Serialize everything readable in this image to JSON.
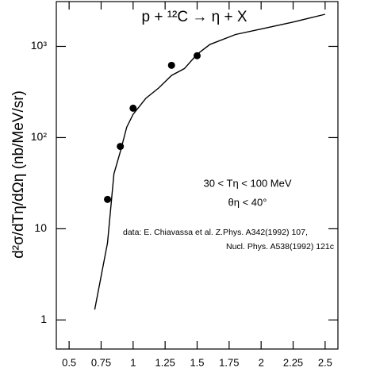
{
  "chart_data": {
    "type": "line",
    "title": "p + ¹²C → η + X",
    "y_label": "d²σ/dTη/dΩη (nb/MeV/sr)",
    "annotations": [
      "30 < Tη < 100 MeV",
      "θη < 40°",
      "data: E. Chiavassa et al. Z.Phys. A342(1992) 107,",
      "Nucl. Phys. A538(1992) 121c"
    ],
    "xlim": [
      0.4,
      2.6
    ],
    "xticks": [
      0.5,
      0.75,
      1,
      1.25,
      1.5,
      1.75,
      2,
      2.25,
      2.5
    ],
    "ylim": [
      0.48,
      3100
    ],
    "y_log": true,
    "yticks": [
      1,
      10,
      {
        "value": 100,
        "label": "10²"
      },
      {
        "value": 1000,
        "label": "10³"
      }
    ],
    "series": [
      {
        "type": "line",
        "color": "#000000",
        "x": [
          0.7,
          0.8,
          0.85,
          0.9,
          0.95,
          1.0,
          1.1,
          1.2,
          1.3,
          1.4,
          1.5,
          1.6,
          1.8,
          2.0,
          2.25,
          2.5
        ],
        "values": [
          1.3,
          7,
          40,
          70,
          130,
          180,
          270,
          350,
          480,
          570,
          820,
          1050,
          1350,
          1550,
          1850,
          2250
        ]
      },
      {
        "type": "scatter",
        "color": "#000000",
        "x": [
          0.8,
          0.9,
          1.0,
          1.3,
          1.5
        ],
        "values": [
          21,
          80,
          210,
          620,
          790
        ]
      }
    ]
  }
}
